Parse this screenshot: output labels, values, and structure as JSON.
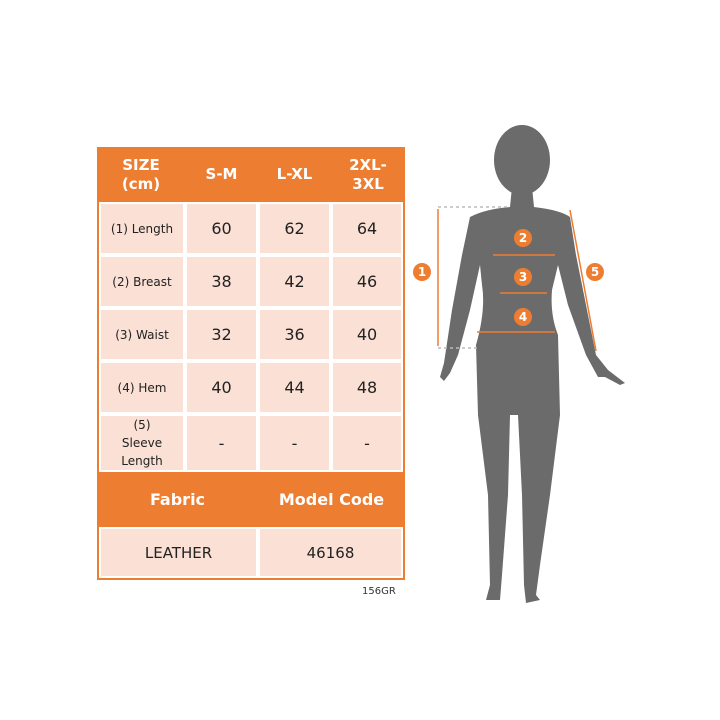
{
  "table": {
    "header": [
      "SIZE\n(cm)",
      "S-M",
      "L-XL",
      "2XL-\n3XL"
    ],
    "rows": [
      {
        "label": "(1) Length",
        "values": [
          "60",
          "62",
          "64"
        ]
      },
      {
        "label": "(2) Breast",
        "values": [
          "38",
          "42",
          "46"
        ]
      },
      {
        "label": "(3) Waist",
        "values": [
          "32",
          "36",
          "40"
        ]
      },
      {
        "label": "(4) Hem",
        "values": [
          "40",
          "44",
          "48"
        ]
      },
      {
        "label": "(5) Sleeve Length",
        "values": [
          "-",
          "-",
          "-"
        ]
      }
    ],
    "footer_headers": [
      "Fabric",
      "Model Code"
    ],
    "footer_values": [
      "LEATHER",
      "46168"
    ]
  },
  "code": "156GR",
  "figure": {
    "markers": [
      "1",
      "2",
      "3",
      "4",
      "5"
    ]
  },
  "colors": {
    "accent": "#ed7d31",
    "cell": "#fbe0d5",
    "silhouette": "#6b6b6b"
  }
}
